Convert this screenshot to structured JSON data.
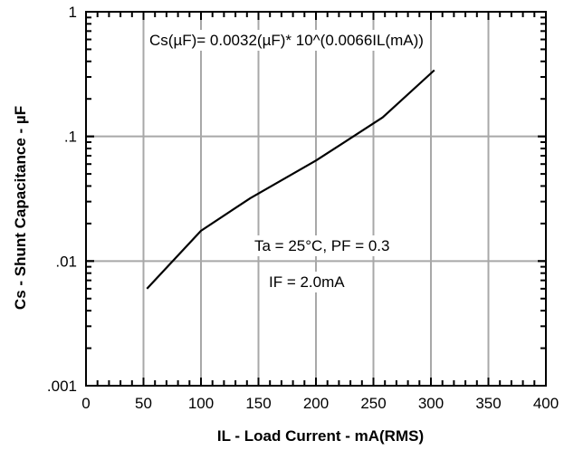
{
  "chart_data": {
    "type": "line",
    "title": "",
    "xlabel": "IL - Load Current -  mA(RMS)",
    "ylabel": "Cs - Shunt Capacitance - µF",
    "xlim": [
      0,
      400
    ],
    "ylim": [
      0.001,
      1
    ],
    "y_scale": "log",
    "grid": true,
    "x_ticks": [
      0,
      50,
      100,
      150,
      200,
      250,
      300,
      350,
      400
    ],
    "x_tick_labels": [
      "0",
      "50",
      "100",
      "150",
      "200",
      "250",
      "300",
      "350",
      "400"
    ],
    "y_ticks": [
      0.001,
      0.01,
      0.1,
      1
    ],
    "y_tick_labels": [
      ".001",
      ".01",
      ".1",
      "1"
    ],
    "series": [
      {
        "x": [
          53,
          100,
          143,
          200,
          258,
          303
        ],
        "y": [
          0.006,
          0.0175,
          0.032,
          0.064,
          0.142,
          0.34
        ]
      }
    ],
    "annotations": {
      "formula": "Cs(µF)= 0.0032(µF)* 10^(0.0066IL(mA))",
      "conditions": "Ta = 25°C,  PF = 0.3",
      "if_value": "IF  =  2.0mA"
    }
  }
}
